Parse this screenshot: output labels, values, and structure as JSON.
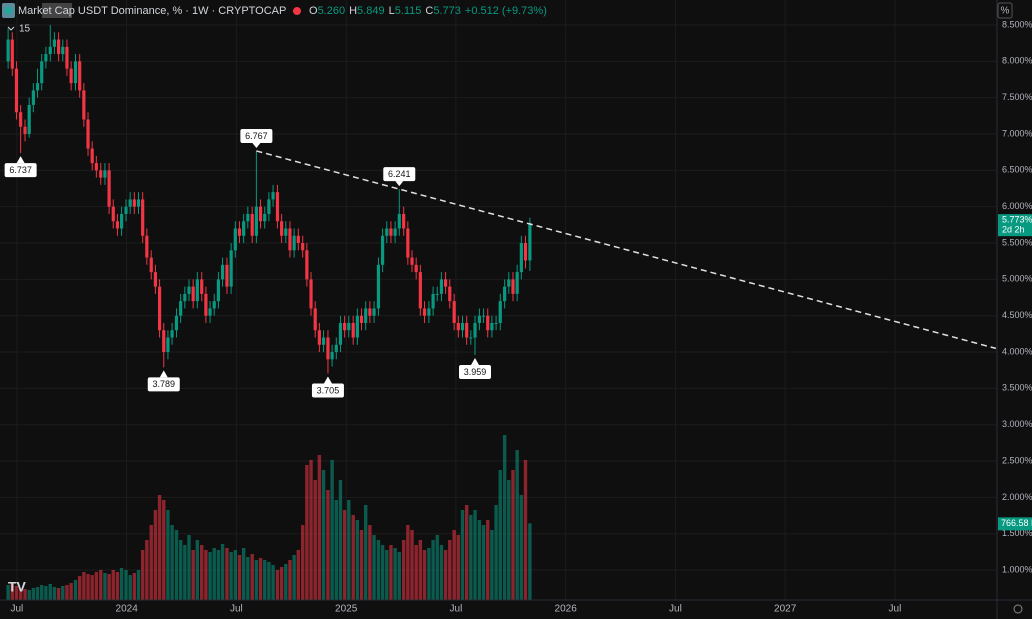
{
  "chart_data": {
    "type": "candlestick",
    "title": "Market Cap USDT Dominance, % · 1W · CRYPTOCAP",
    "indicator_count": "15",
    "ohlc_legend": [
      {
        "key": "O",
        "text": "5.260"
      },
      {
        "key": "H",
        "text": "5.849"
      },
      {
        "key": "L",
        "text": "5.115"
      },
      {
        "key": "C",
        "text": "5.773"
      }
    ],
    "change_text": "+0.512 (+9.73%)",
    "axis_unit": "%",
    "last_price_label": "5.773%",
    "countdown": "2d 2h",
    "last_volume_label": "766.58 B",
    "up_color": "#089981",
    "down_color": "#f23645",
    "grid": true,
    "x": [
      2023.46,
      2023.479,
      2023.498,
      2023.517,
      2023.537,
      2023.556,
      2023.575,
      2023.594,
      2023.613,
      2023.632,
      2023.652,
      2023.671,
      2023.69,
      2023.709,
      2023.728,
      2023.747,
      2023.767,
      2023.786,
      2023.805,
      2023.824,
      2023.843,
      2023.862,
      2023.882,
      2023.901,
      2023.92,
      2023.939,
      2023.958,
      2023.977,
      2023.997,
      2024.016,
      2024.035,
      2024.054,
      2024.073,
      2024.092,
      2024.112,
      2024.131,
      2024.15,
      2024.169,
      2024.188,
      2024.207,
      2024.227,
      2024.246,
      2024.265,
      2024.284,
      2024.303,
      2024.322,
      2024.342,
      2024.361,
      2024.38,
      2024.399,
      2024.418,
      2024.437,
      2024.457,
      2024.476,
      2024.495,
      2024.514,
      2024.533,
      2024.552,
      2024.572,
      2024.591,
      2024.61,
      2024.629,
      2024.648,
      2024.667,
      2024.687,
      2024.706,
      2024.725,
      2024.744,
      2024.763,
      2024.782,
      2024.802,
      2024.821,
      2024.84,
      2024.859,
      2024.878,
      2024.897,
      2024.917,
      2024.936,
      2024.955,
      2024.974,
      2024.993,
      2025.012,
      2025.032,
      2025.051,
      2025.07,
      2025.089,
      2025.108,
      2025.127,
      2025.147,
      2025.166,
      2025.185,
      2025.204,
      2025.223,
      2025.242,
      2025.262,
      2025.281,
      2025.3,
      2025.319,
      2025.338,
      2025.357,
      2025.377,
      2025.396,
      2025.415,
      2025.434,
      2025.453,
      2025.472,
      2025.492,
      2025.511,
      2025.53,
      2025.549,
      2025.568,
      2025.587,
      2025.607,
      2025.626,
      2025.645,
      2025.664,
      2025.683,
      2025.702,
      2025.722,
      2025.741,
      2025.76,
      2025.779,
      2025.798,
      2025.817,
      2025.837
    ],
    "open": [
      8.0,
      8.3,
      7.9,
      7.3,
      7.1,
      7.0,
      7.4,
      7.6,
      7.7,
      8.0,
      8.1,
      8.2,
      8.3,
      8.1,
      8.2,
      7.9,
      7.7,
      8.0,
      7.6,
      7.2,
      6.8,
      6.6,
      6.5,
      6.4,
      6.5,
      6.0,
      5.8,
      5.7,
      5.9,
      6.0,
      6.1,
      6.0,
      6.1,
      5.6,
      5.3,
      5.1,
      4.9,
      4.3,
      4.0,
      4.2,
      4.3,
      4.5,
      4.7,
      4.8,
      4.9,
      4.7,
      5.0,
      4.8,
      4.5,
      4.6,
      4.7,
      5.0,
      5.2,
      4.9,
      5.4,
      5.7,
      5.6,
      5.8,
      5.9,
      5.6,
      6.0,
      5.8,
      5.9,
      6.1,
      6.2,
      5.8,
      5.6,
      5.7,
      5.4,
      5.6,
      5.5,
      5.4,
      5.0,
      4.6,
      4.3,
      4.1,
      4.2,
      3.9,
      4.0,
      4.1,
      4.4,
      4.3,
      4.4,
      4.2,
      4.5,
      4.4,
      4.6,
      4.5,
      4.6,
      5.2,
      5.6,
      5.7,
      5.6,
      5.7,
      5.9,
      5.7,
      5.3,
      5.2,
      5.1,
      4.6,
      4.5,
      4.6,
      4.8,
      4.8,
      5.0,
      4.9,
      4.7,
      4.4,
      4.3,
      4.4,
      4.2,
      4.2,
      4.4,
      4.5,
      4.5,
      4.3,
      4.4,
      4.4,
      4.7,
      4.9,
      5.0,
      4.8,
      5.1,
      5.5,
      5.26
    ],
    "high": [
      8.45,
      8.4,
      8.0,
      7.4,
      7.2,
      7.5,
      7.7,
      7.9,
      8.1,
      8.2,
      8.5,
      8.4,
      8.4,
      8.3,
      8.3,
      8.0,
      8.1,
      8.1,
      7.7,
      7.3,
      6.9,
      6.7,
      6.6,
      6.6,
      6.6,
      6.1,
      5.9,
      6.0,
      6.1,
      6.2,
      6.2,
      6.2,
      6.2,
      5.7,
      5.4,
      5.2,
      5.0,
      4.4,
      4.3,
      4.4,
      4.6,
      4.8,
      4.9,
      5.0,
      5.0,
      5.1,
      5.1,
      4.9,
      4.7,
      4.8,
      5.1,
      5.3,
      5.3,
      5.5,
      5.8,
      5.8,
      5.9,
      6.0,
      6.0,
      6.767,
      6.1,
      6.0,
      6.2,
      6.3,
      6.3,
      5.9,
      5.8,
      5.8,
      5.7,
      5.7,
      5.6,
      5.5,
      5.1,
      4.7,
      4.4,
      4.3,
      4.3,
      4.1,
      4.2,
      4.5,
      4.5,
      4.5,
      4.5,
      4.6,
      4.6,
      4.7,
      4.7,
      4.7,
      5.3,
      5.7,
      5.8,
      5.8,
      5.8,
      6.241,
      6.0,
      5.8,
      5.4,
      5.3,
      5.2,
      4.7,
      4.7,
      4.9,
      4.9,
      5.1,
      5.1,
      5.0,
      4.8,
      4.5,
      4.5,
      4.5,
      4.3,
      4.5,
      4.6,
      4.6,
      4.6,
      4.5,
      4.5,
      4.8,
      5.0,
      5.1,
      5.1,
      5.2,
      5.6,
      5.6,
      5.849
    ],
    "low": [
      7.9,
      7.8,
      7.2,
      6.737,
      6.9,
      6.95,
      7.3,
      7.5,
      7.6,
      7.9,
      8.0,
      8.1,
      8.0,
      8.0,
      7.8,
      7.6,
      7.6,
      7.5,
      7.1,
      6.7,
      6.5,
      6.4,
      6.3,
      6.3,
      5.9,
      5.7,
      5.6,
      5.6,
      5.8,
      5.9,
      5.9,
      5.9,
      5.5,
      5.2,
      5.0,
      4.8,
      4.2,
      3.789,
      3.9,
      4.1,
      4.2,
      4.4,
      4.6,
      4.7,
      4.6,
      4.6,
      4.7,
      4.4,
      4.4,
      4.5,
      4.6,
      4.9,
      4.8,
      4.8,
      5.3,
      5.5,
      5.5,
      5.7,
      5.5,
      5.5,
      5.7,
      5.7,
      5.8,
      6.0,
      5.7,
      5.5,
      5.5,
      5.3,
      5.3,
      5.4,
      5.3,
      4.9,
      4.5,
      4.2,
      4.0,
      4.0,
      3.705,
      3.8,
      3.9,
      4.0,
      4.2,
      4.2,
      4.1,
      4.1,
      4.3,
      4.3,
      4.4,
      4.4,
      4.5,
      5.1,
      5.5,
      5.5,
      5.5,
      5.6,
      5.6,
      5.2,
      5.1,
      5.0,
      4.5,
      4.4,
      4.4,
      4.5,
      4.7,
      4.7,
      4.8,
      4.6,
      4.3,
      4.2,
      4.2,
      4.1,
      4.1,
      3.959,
      4.3,
      4.4,
      4.2,
      4.2,
      4.3,
      4.3,
      4.6,
      4.8,
      4.7,
      4.7,
      5.0,
      5.15,
      5.115
    ],
    "close": [
      8.3,
      7.9,
      7.3,
      7.1,
      7.0,
      7.4,
      7.6,
      7.7,
      8.0,
      8.1,
      8.2,
      8.3,
      8.1,
      8.2,
      7.9,
      7.7,
      8.0,
      7.6,
      7.2,
      6.8,
      6.6,
      6.5,
      6.4,
      6.5,
      6.0,
      5.8,
      5.7,
      5.9,
      6.0,
      6.1,
      6.0,
      6.1,
      5.6,
      5.3,
      5.1,
      4.9,
      4.3,
      4.0,
      4.2,
      4.3,
      4.5,
      4.7,
      4.8,
      4.9,
      4.7,
      5.0,
      4.8,
      4.5,
      4.6,
      4.7,
      5.0,
      5.2,
      4.9,
      5.4,
      5.7,
      5.6,
      5.8,
      5.9,
      5.6,
      6.0,
      5.8,
      5.9,
      6.1,
      6.2,
      5.8,
      5.6,
      5.7,
      5.4,
      5.6,
      5.5,
      5.4,
      5.0,
      4.6,
      4.3,
      4.1,
      4.2,
      3.9,
      4.0,
      4.1,
      4.4,
      4.3,
      4.4,
      4.2,
      4.5,
      4.4,
      4.6,
      4.5,
      4.6,
      5.2,
      5.6,
      5.7,
      5.6,
      5.7,
      5.9,
      5.7,
      5.3,
      5.2,
      5.1,
      4.6,
      4.5,
      4.6,
      4.8,
      4.8,
      5.0,
      4.9,
      4.7,
      4.4,
      4.3,
      4.4,
      4.2,
      4.2,
      4.4,
      4.5,
      4.5,
      4.3,
      4.4,
      4.4,
      4.7,
      4.9,
      5.0,
      4.8,
      5.1,
      5.5,
      5.26,
      5.773
    ],
    "volume": [
      150,
      170,
      140,
      120,
      110,
      100,
      120,
      130,
      150,
      140,
      160,
      130,
      120,
      140,
      150,
      170,
      200,
      240,
      280,
      260,
      250,
      280,
      300,
      270,
      260,
      300,
      280,
      320,
      300,
      250,
      270,
      300,
      500,
      600,
      750,
      900,
      1050,
      1000,
      900,
      750,
      700,
      600,
      550,
      650,
      500,
      600,
      550,
      500,
      480,
      520,
      500,
      560,
      520,
      480,
      500,
      450,
      520,
      430,
      460,
      400,
      420,
      400,
      380,
      350,
      300,
      330,
      360,
      400,
      450,
      500,
      750,
      1350,
      1400,
      1200,
      1450,
      1300,
      1100,
      1400,
      1000,
      1200,
      900,
      1000,
      850,
      800,
      700,
      950,
      750,
      650,
      600,
      550,
      500,
      550,
      520,
      480,
      600,
      750,
      700,
      550,
      600,
      500,
      520,
      600,
      650,
      550,
      500,
      600,
      700,
      650,
      900,
      950,
      850,
      900,
      800,
      750,
      800,
      700,
      950,
      1300,
      1650,
      1200,
      1300,
      1500,
      1050,
      1400,
      766.58
    ],
    "volume_lim": [
      0,
      6000
    ],
    "marked_extremes": [
      {
        "series": "low",
        "index": 3
      },
      {
        "series": "high",
        "index": 59
      },
      {
        "series": "low",
        "index": 37
      },
      {
        "series": "low",
        "index": 76
      },
      {
        "series": "high",
        "index": 93
      },
      {
        "series": "low",
        "index": 111
      }
    ],
    "trendline": {
      "x": [
        2024.591,
        2027.96
      ],
      "y": [
        6.767,
        4.05
      ]
    },
    "xlim": [
      2023.423,
      2027.965
    ],
    "ylim": [
      0.588,
      8.844
    ],
    "xticks": [
      {
        "value": 2023.5,
        "label": "Jul"
      },
      2024,
      {
        "value": 2024.5,
        "label": "Jul"
      },
      2025,
      {
        "value": 2025.5,
        "label": "Jul"
      },
      2026,
      {
        "value": 2026.5,
        "label": "Jul"
      },
      2027,
      {
        "value": 2027.5,
        "label": "Jul"
      }
    ],
    "yticks": [
      {
        "value": 1,
        "label": "1.000%"
      },
      {
        "value": 1.5,
        "label": "1.500%"
      },
      {
        "value": 2,
        "label": "2.000%"
      },
      {
        "value": 2.5,
        "label": "2.500%"
      },
      {
        "value": 3,
        "label": "3.000%"
      },
      {
        "value": 3.5,
        "label": "3.500%"
      },
      {
        "value": 4,
        "label": "4.000%"
      },
      {
        "value": 4.5,
        "label": "4.500%"
      },
      {
        "value": 5,
        "label": "5.000%"
      },
      {
        "value": 5.5,
        "label": "5.500%"
      },
      {
        "value": 6,
        "label": "6.000%"
      },
      {
        "value": 6.5,
        "label": "6.500%"
      },
      {
        "value": 7,
        "label": "7.000%"
      },
      {
        "value": 7.5,
        "label": "7.500%"
      },
      {
        "value": 8,
        "label": "8.000%"
      },
      {
        "value": 8.5,
        "label": "8.500%"
      }
    ]
  }
}
